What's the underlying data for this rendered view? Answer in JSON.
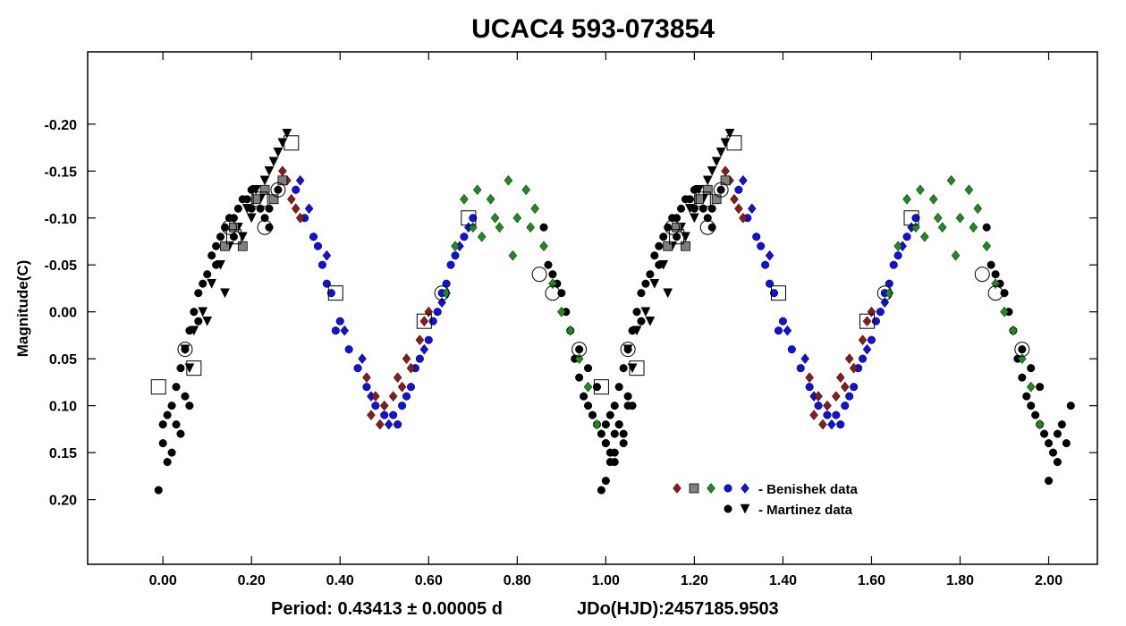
{
  "chart_data": {
    "type": "scatter",
    "title": "UCAC4 593-073854",
    "xlabel": "",
    "ylabel": "Magnitude(C)",
    "xlim": [
      -0.17,
      2.11
    ],
    "ylim": [
      0.269,
      -0.277
    ],
    "y_inverted": true,
    "x_ticks": [
      "0.00",
      "0.20",
      "0.40",
      "0.60",
      "0.80",
      "1.00",
      "1.20",
      "1.40",
      "1.60",
      "1.80",
      "2.00"
    ],
    "y_ticks": [
      "-0.20",
      "-0.15",
      "-0.10",
      "-0.05",
      "0.00",
      "0.05",
      "0.10",
      "0.15",
      "0.20"
    ],
    "footer": {
      "period": "Period: 0.43413 ± 0.00005 d",
      "epoch": "JDo(HJD):2457185.9503"
    },
    "legend": [
      {
        "label": "- Benishek data",
        "markers": [
          "diamond-darkred",
          "square-gray",
          "diamond-green",
          "circle-blue",
          "diamond-blue"
        ]
      },
      {
        "label": "- Martinez data",
        "markers": [
          "circle-black",
          "triangle-black"
        ]
      }
    ],
    "colors": {
      "darkred": "#8b1a1a",
      "gray": "#808080",
      "green": "#1f8a1f",
      "blue": "#1010e0",
      "black": "#000000"
    },
    "series": [
      {
        "name": "Martinez circles",
        "marker": "circle",
        "color": "black",
        "x": [
          -0.01,
          0.0,
          0.01,
          0.02,
          0.03,
          0.04,
          0.05,
          0.06,
          0.07,
          0.08,
          0.09,
          0.1,
          0.11,
          0.12,
          0.13,
          0.14,
          0.15,
          0.16,
          0.17,
          0.18,
          0.19,
          0.2,
          0.21,
          0.22,
          0.23,
          0.24,
          0.25,
          0.26,
          0.27,
          0.0,
          0.02,
          0.04,
          0.06,
          0.03,
          0.05,
          0.01,
          0.08,
          0.12,
          0.16,
          0.2,
          0.24,
          0.86,
          0.87,
          0.88,
          0.89,
          0.9,
          0.91,
          0.92,
          0.93,
          0.94,
          0.95,
          0.96,
          0.97,
          0.98,
          0.99,
          1.0,
          1.01,
          1.02,
          1.03,
          1.04,
          1.05,
          0.94,
          0.96,
          0.98,
          1.0,
          1.02
        ],
        "y": [
          0.19,
          0.12,
          0.11,
          0.1,
          0.08,
          0.06,
          0.04,
          0.02,
          0.0,
          -0.02,
          -0.03,
          -0.04,
          -0.06,
          -0.07,
          -0.08,
          -0.09,
          -0.1,
          -0.1,
          -0.11,
          -0.12,
          -0.12,
          -0.13,
          -0.12,
          -0.11,
          -0.1,
          -0.11,
          -0.12,
          -0.13,
          -0.14,
          0.14,
          0.15,
          0.13,
          0.1,
          0.12,
          0.09,
          0.16,
          0.01,
          -0.05,
          -0.08,
          -0.11,
          -0.09,
          -0.09,
          -0.05,
          -0.04,
          -0.03,
          -0.02,
          0.0,
          0.02,
          0.05,
          0.07,
          0.09,
          0.1,
          0.11,
          0.12,
          0.13,
          0.14,
          0.15,
          0.13,
          0.12,
          0.14,
          0.1,
          0.04,
          0.06,
          0.08,
          0.18,
          0.16
        ]
      },
      {
        "name": "Martinez triangles",
        "marker": "triangle",
        "color": "black",
        "x": [
          0.05,
          0.07,
          0.09,
          0.11,
          0.13,
          0.15,
          0.17,
          0.19,
          0.21,
          0.23,
          0.25,
          0.27,
          0.28,
          0.26,
          0.24,
          0.22,
          0.2,
          0.18,
          0.14,
          0.1,
          0.06
        ],
        "y": [
          0.04,
          0.02,
          0.0,
          -0.03,
          -0.05,
          -0.07,
          -0.09,
          -0.11,
          -0.13,
          -0.14,
          -0.16,
          -0.18,
          -0.19,
          -0.17,
          -0.15,
          -0.12,
          -0.1,
          -0.08,
          -0.02,
          0.01,
          0.06
        ]
      },
      {
        "name": "Benishek blue circles",
        "marker": "circle",
        "color": "blue",
        "x": [
          0.3,
          0.32,
          0.34,
          0.36,
          0.38,
          0.4,
          0.42,
          0.44,
          0.46,
          0.48,
          0.5,
          0.52,
          0.54,
          0.56,
          0.58,
          0.6,
          0.62,
          0.64,
          0.66,
          0.68,
          0.7,
          0.35,
          0.37,
          0.39,
          0.53,
          0.55,
          0.57,
          0.61,
          0.63,
          0.65
        ],
        "y": [
          -0.13,
          -0.1,
          -0.08,
          -0.05,
          -0.02,
          0.01,
          0.04,
          0.06,
          0.08,
          0.1,
          0.11,
          0.11,
          0.1,
          0.08,
          0.05,
          0.03,
          0.0,
          -0.03,
          -0.06,
          -0.08,
          -0.1,
          -0.07,
          -0.03,
          0.02,
          0.12,
          0.09,
          0.06,
          0.01,
          -0.02,
          -0.05
        ]
      },
      {
        "name": "Benishek blue diamonds",
        "marker": "diamond",
        "color": "blue",
        "x": [
          0.31,
          0.33,
          0.37,
          0.41,
          0.45,
          0.47,
          0.51,
          0.59,
          0.63,
          0.67,
          0.69
        ],
        "y": [
          -0.14,
          -0.11,
          -0.06,
          0.02,
          0.05,
          0.09,
          0.12,
          0.04,
          -0.01,
          -0.07,
          -0.09
        ]
      },
      {
        "name": "Benishek darkred diamonds",
        "marker": "diamond",
        "color": "darkred",
        "x": [
          0.27,
          0.28,
          0.29,
          0.3,
          0.31,
          0.46,
          0.48,
          0.5,
          0.52,
          0.54,
          0.56,
          0.58,
          0.59,
          0.6,
          0.47,
          0.49,
          0.53,
          0.55
        ],
        "y": [
          -0.15,
          -0.14,
          -0.12,
          -0.11,
          -0.1,
          0.07,
          0.09,
          0.1,
          0.09,
          0.08,
          0.06,
          0.03,
          0.01,
          0.0,
          0.11,
          0.12,
          0.07,
          0.05
        ]
      },
      {
        "name": "Benishek green diamonds",
        "marker": "diamond",
        "color": "green",
        "x": [
          0.64,
          0.66,
          0.68,
          0.7,
          0.72,
          0.74,
          0.76,
          0.78,
          0.8,
          0.82,
          0.84,
          0.86,
          0.88,
          0.9,
          0.92,
          0.94,
          0.96,
          0.98,
          0.71,
          0.75,
          0.79,
          0.83
        ],
        "y": [
          -0.02,
          -0.07,
          -0.12,
          -0.09,
          -0.08,
          -0.12,
          -0.09,
          -0.14,
          -0.1,
          -0.13,
          -0.11,
          -0.07,
          -0.03,
          0.0,
          0.02,
          0.05,
          0.08,
          0.12,
          -0.13,
          -0.1,
          -0.06,
          -0.09
        ]
      },
      {
        "name": "Benishek gray squares",
        "marker": "square",
        "color": "gray",
        "x": [
          0.14,
          0.16,
          0.18,
          0.21,
          0.23,
          0.25,
          0.27
        ],
        "y": [
          -0.07,
          -0.09,
          -0.07,
          -0.12,
          -0.13,
          -0.12,
          -0.14
        ]
      },
      {
        "name": "open squares",
        "marker": "open-square",
        "color": "black",
        "x": [
          -0.01,
          0.07,
          0.16,
          0.22,
          0.29,
          0.39,
          0.59,
          0.69
        ],
        "y": [
          0.08,
          0.06,
          -0.08,
          -0.12,
          -0.18,
          -0.02,
          0.01,
          -0.1
        ]
      },
      {
        "name": "open circles",
        "marker": "open-circle",
        "color": "black",
        "x": [
          0.05,
          0.15,
          0.23,
          0.26,
          0.63,
          0.85,
          0.88,
          0.94
        ],
        "y": [
          0.04,
          -0.09,
          -0.09,
          -0.13,
          -0.02,
          -0.04,
          -0.02,
          0.04
        ]
      }
    ]
  }
}
